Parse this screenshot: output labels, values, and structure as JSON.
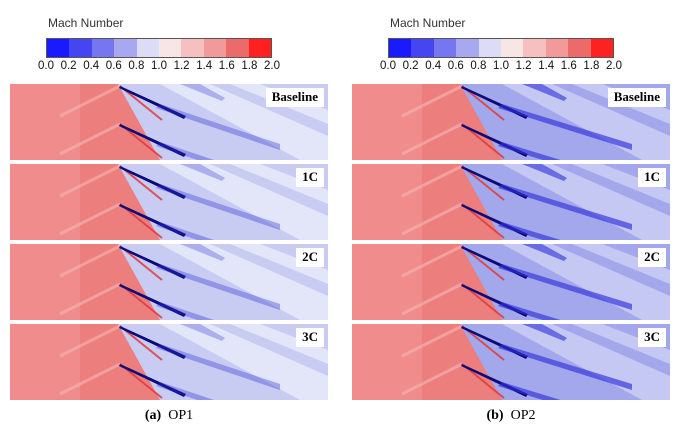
{
  "colorbar": {
    "title": "Mach Number",
    "ticks": [
      "0.0",
      "0.2",
      "0.4",
      "0.6",
      "0.8",
      "1.0",
      "1.2",
      "1.4",
      "1.6",
      "1.8",
      "2.0"
    ],
    "colors": [
      "#1a1aff",
      "#4545f2",
      "#7676f0",
      "#a8a8f0",
      "#dcdcf6",
      "#f8e6e6",
      "#f6c0c0",
      "#f29a9a",
      "#ec6a6a",
      "#ff2020"
    ]
  },
  "colors": {
    "freestream": "#f08c8c",
    "post_shock": "#eb7272",
    "passage": "#c8cbf2",
    "passage_dark": "#a3a8ec",
    "wake_light": "#eef0fb",
    "blade_dark": "#0b0b7a"
  },
  "panel_labels": [
    "Baseline",
    "1C",
    "2C",
    "3C"
  ],
  "left": {
    "caption_letter": "(a)",
    "caption_text": "OP1"
  },
  "right": {
    "caption_letter": "(b)",
    "caption_text": "OP2"
  }
}
